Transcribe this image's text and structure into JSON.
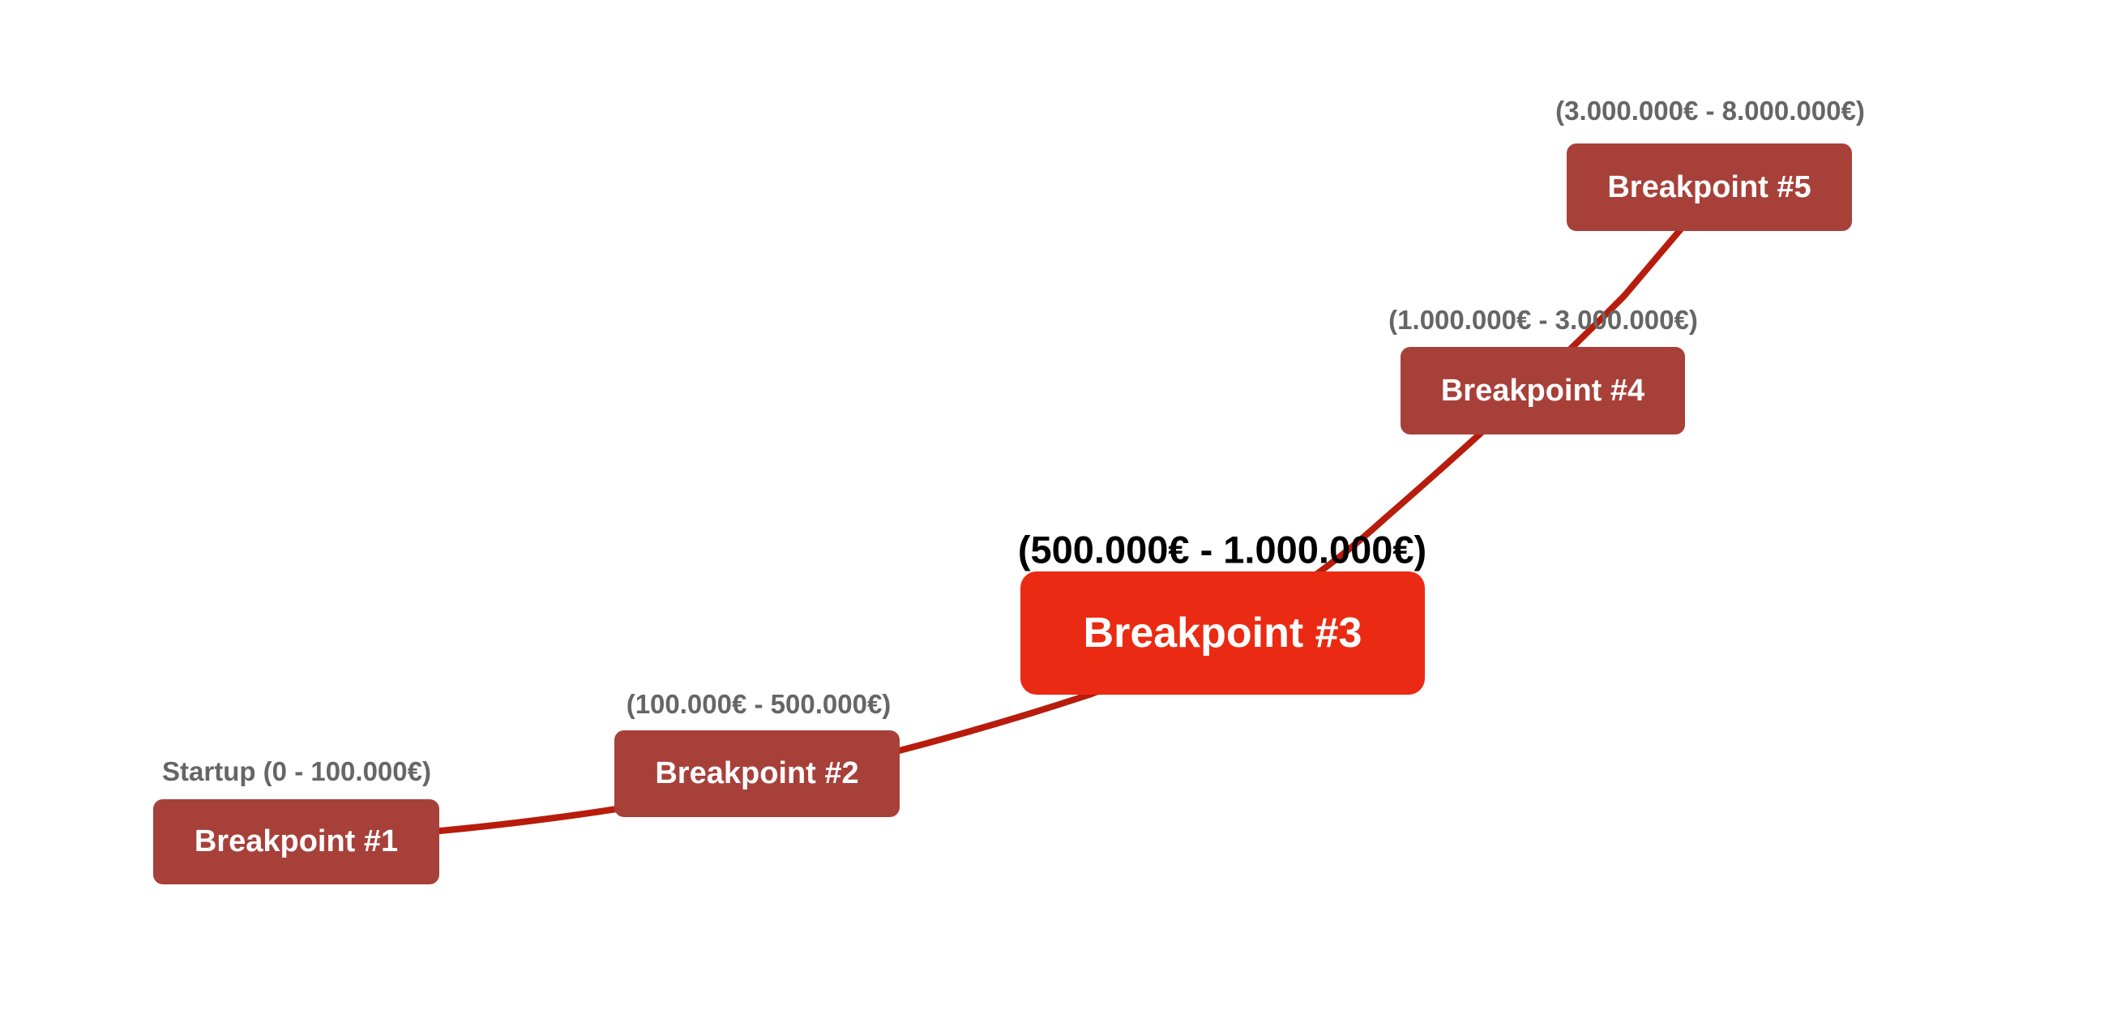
{
  "colors": {
    "box": "#a8403a",
    "highlight_box": "#ea2a12",
    "connector": "#b81c0c",
    "label": "#666666",
    "highlight_label": "#000000"
  },
  "nodes": [
    {
      "title": "Breakpoint #1",
      "range": "Startup (0 - 100.000€)"
    },
    {
      "title": "Breakpoint #2",
      "range": "(100.000€ - 500.000€)"
    },
    {
      "title": "Breakpoint #3",
      "range": "(500.000€ - 1.000.000€)",
      "highlighted": true
    },
    {
      "title": "Breakpoint #4",
      "range": "(1.000.000€ - 3.000.000€)"
    },
    {
      "title": "Breakpoint #5",
      "range": "(3.000.000€ - 8.000.000€)"
    }
  ]
}
